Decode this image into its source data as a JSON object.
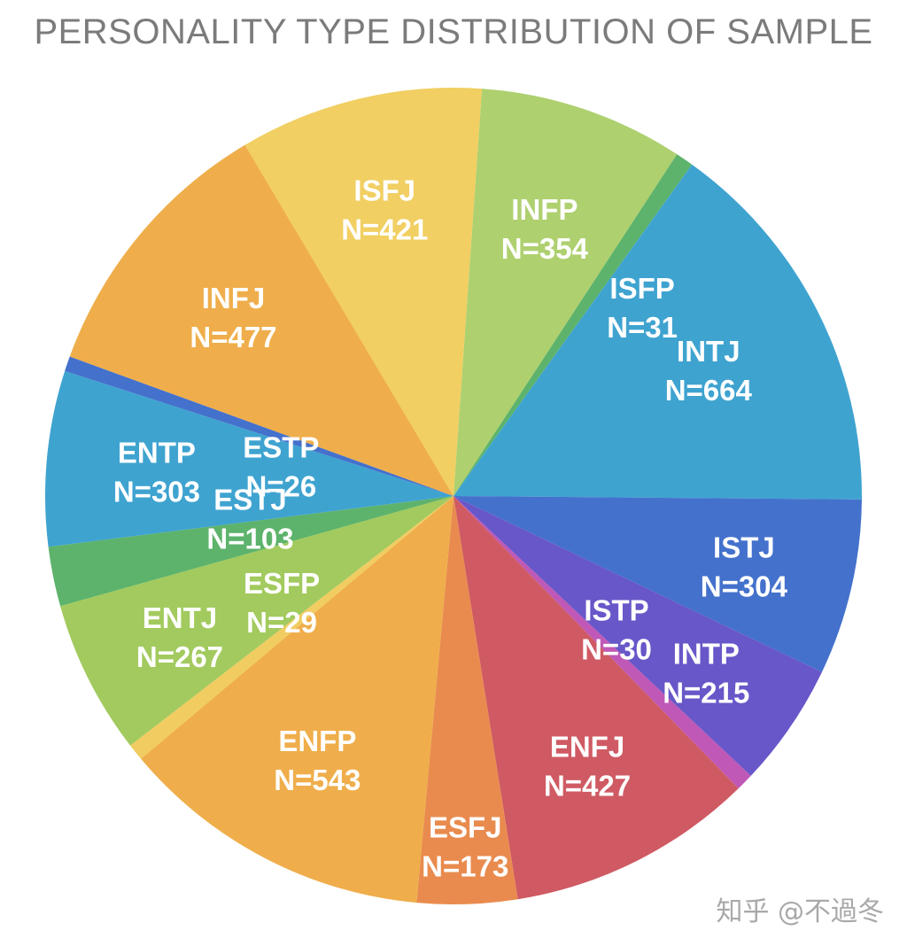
{
  "watermark": "知乎 @不過冬",
  "chart_data": {
    "type": "pie",
    "title": "PERSONALITY TYPE DISTRIBUTION OF SAMPLE",
    "value_prefix": "N=",
    "slices": [
      {
        "label": "INFP",
        "value": 354,
        "color": "#aed06f"
      },
      {
        "label": "ISFP",
        "value": 31,
        "color": "#5db36b"
      },
      {
        "label": "INTJ",
        "value": 664,
        "color": "#3fa3d0"
      },
      {
        "label": "ISTJ",
        "value": 304,
        "color": "#4471cc"
      },
      {
        "label": "INTP",
        "value": 215,
        "color": "#6757c8"
      },
      {
        "label": "ISTP",
        "value": 30,
        "color": "#bf58b6"
      },
      {
        "label": "ENFJ",
        "value": 427,
        "color": "#cf5a63"
      },
      {
        "label": "ESFJ",
        "value": 173,
        "color": "#e98b4e"
      },
      {
        "label": "ENFP",
        "value": 543,
        "color": "#efae4b"
      },
      {
        "label": "ESFP",
        "value": 29,
        "color": "#f1cc61"
      },
      {
        "label": "ENTJ",
        "value": 267,
        "color": "#a2ca5e"
      },
      {
        "label": "ESTJ",
        "value": 103,
        "color": "#5db36b"
      },
      {
        "label": "ENTP",
        "value": 303,
        "color": "#3fa3d0"
      },
      {
        "label": "ESTP",
        "value": 26,
        "color": "#4471cc"
      },
      {
        "label": "INFJ",
        "value": 477,
        "color": "#efae4b"
      },
      {
        "label": "ISFJ",
        "value": 421,
        "color": "#f1cf62"
      }
    ]
  }
}
